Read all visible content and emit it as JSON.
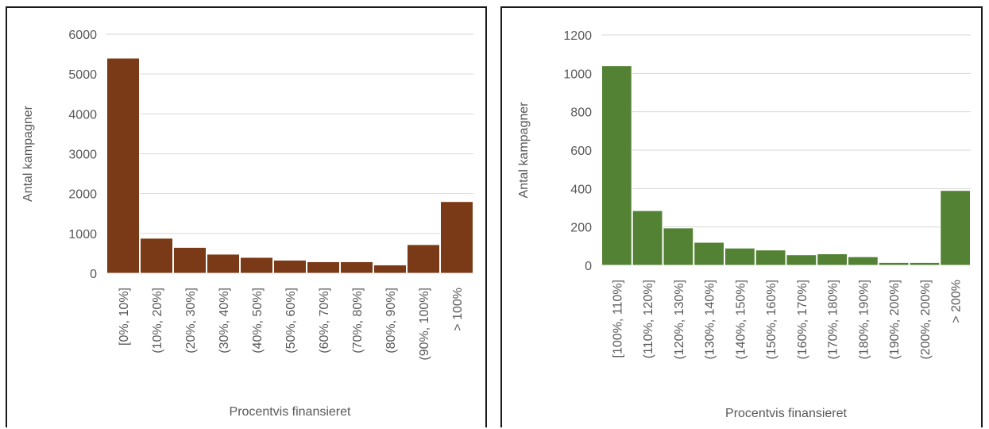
{
  "chart_data": [
    {
      "type": "bar",
      "categories": [
        "[0%, 10%]",
        "(10%, 20%]",
        "(20%, 30%]",
        "(30%, 40%]",
        "(40%, 50%]",
        "(50%, 60%]",
        "(60%, 70%]",
        "(70%, 80%]",
        "(80%, 90%]",
        "(90%, 100%]",
        "> 100%"
      ],
      "values": [
        5400,
        880,
        650,
        480,
        400,
        330,
        290,
        290,
        210,
        720,
        1800
      ],
      "xlabel": "Procentvis finansieret",
      "ylabel": "Antal kampagner",
      "ylim": [
        0,
        6000
      ],
      "yticks": [
        "0",
        "1000",
        "2000",
        "3000",
        "4000",
        "5000",
        "6000"
      ],
      "grid": true,
      "color": "#7b3a17"
    },
    {
      "type": "bar",
      "categories": [
        "[100%, 110%]",
        "(110%, 120%]",
        "(120%, 130%]",
        "(130%, 140%]",
        "(140%, 150%]",
        "(150%, 160%]",
        "(160%, 170%]",
        "(170%, 180%]",
        "(180%, 190%]",
        "(190%, 200%]",
        "(200%, 200%]",
        "> 200%"
      ],
      "values": [
        1040,
        285,
        195,
        120,
        90,
        80,
        55,
        60,
        45,
        15,
        15,
        390
      ],
      "xlabel": "Procentvis finansieret",
      "ylabel": "Antal kampagner",
      "ylim": [
        0,
        1200
      ],
      "yticks": [
        "0",
        "200",
        "400",
        "600",
        "800",
        "1000",
        "1200"
      ],
      "grid": true,
      "color": "#548235"
    }
  ]
}
